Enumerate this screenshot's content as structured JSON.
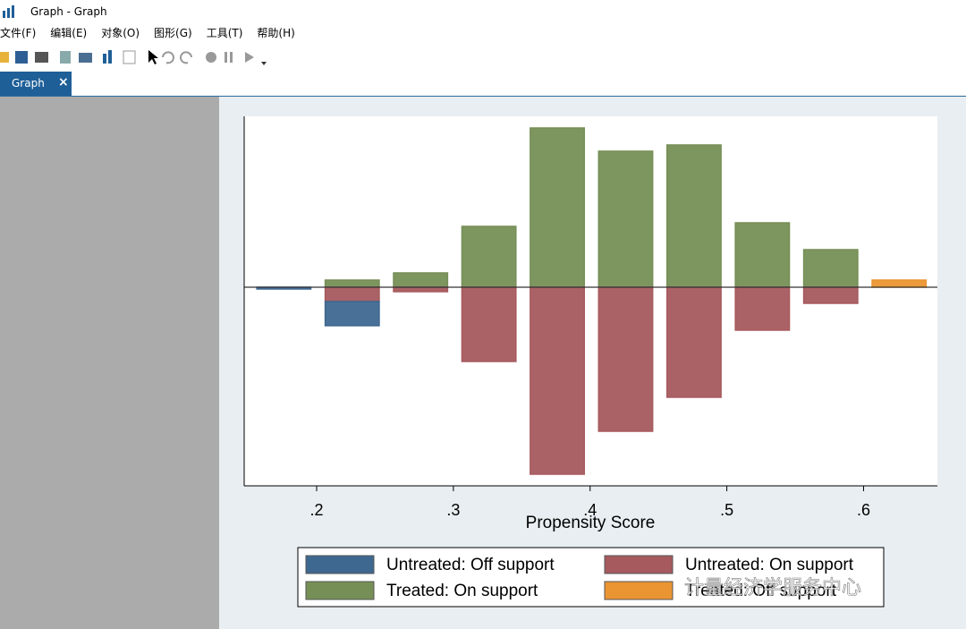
{
  "window": {
    "title": "Graph - Graph",
    "menu": [
      "文件(F)",
      "编辑(E)",
      "对象(O)",
      "图形(G)",
      "工具(T)",
      "帮助(H)"
    ],
    "tab": "Graph",
    "watermark": "计量经济学服务中心"
  },
  "chart_data": {
    "type": "bar",
    "stacked": true,
    "xlabel": "Propensity Score",
    "x": [
      0.176,
      0.226,
      0.276,
      0.326,
      0.376,
      0.426,
      0.476,
      0.526,
      0.576,
      0.626
    ],
    "series": [
      {
        "name": "Untreated: Off support",
        "color": "#3f6890",
        "values": [
          -0.2,
          -2.7,
          null,
          null,
          null,
          null,
          null,
          null,
          null,
          null
        ]
      },
      {
        "name": "Untreated: On support",
        "color": "#a65a5e",
        "values": [
          null,
          -1.6,
          -0.5,
          -8.3,
          -20.9,
          -16.1,
          -12.3,
          -4.8,
          -1.8,
          null
        ]
      },
      {
        "name": "Treated: On support",
        "color": "#768f56",
        "values": [
          null,
          0.8,
          1.6,
          6.8,
          17.8,
          15.2,
          15.9,
          7.2,
          4.2,
          null
        ]
      },
      {
        "name": "Treated: Off support",
        "color": "#ea9532",
        "values": [
          null,
          null,
          null,
          null,
          null,
          null,
          null,
          null,
          null,
          0.8
        ]
      }
    ],
    "xlim": [
      0.147,
      0.654
    ],
    "xticks": [
      {
        "value": 0.2,
        "label": ".2"
      },
      {
        "value": 0.3,
        "label": ".3"
      },
      {
        "value": 0.4,
        "label": ".4"
      },
      {
        "value": 0.5,
        "label": ".5"
      },
      {
        "value": 0.6,
        "label": ".6"
      }
    ],
    "ylim": [
      -22.2,
      19.1
    ],
    "legend": "bottom"
  }
}
